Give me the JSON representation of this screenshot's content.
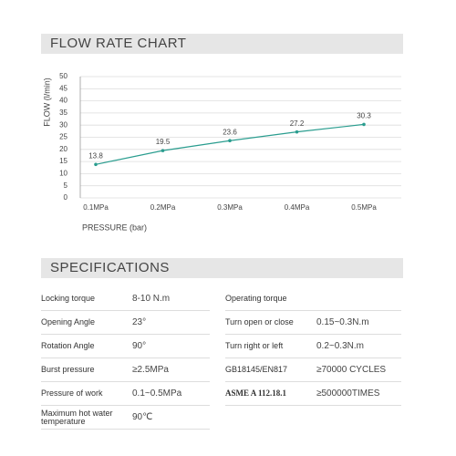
{
  "chart_data": {
    "type": "line",
    "title": "FLOW RATE CHART",
    "y_label": "FLOW (l/min)",
    "x_label": "PRESSURE (bar)",
    "categories": [
      "0.1MPa",
      "0.2MPa",
      "0.3MPa",
      "0.4MPa",
      "0.5MPa"
    ],
    "values": [
      13.8,
      19.5,
      23.6,
      27.2,
      30.3
    ],
    "color": "#2a9d8f",
    "ylim": [
      0,
      50
    ],
    "yticks": [
      0,
      5,
      10,
      15,
      20,
      25,
      30,
      35,
      40,
      45,
      50
    ],
    "grid": true
  },
  "specifications": {
    "title": "SPECIFICATIONS",
    "left": [
      {
        "label": "Locking torque",
        "value": "8-10 N.m"
      },
      {
        "label": "Opening Angle",
        "value": "23°"
      },
      {
        "label": "Rotation Angle",
        "value": "90°"
      },
      {
        "label": "Burst pressure",
        "value": "≥2.5MPa"
      },
      {
        "label": "Pressure of work",
        "value": "0.1~0.5MPa"
      },
      {
        "label": "Maximum hot water temperature",
        "value": "90℃"
      }
    ],
    "right": [
      {
        "label": "Operating torque"
      },
      {
        "label": "Turn open or close",
        "value": "0.15~0.3N.m"
      },
      {
        "label": "Turn right or left",
        "value": "0.2~0.3N.m"
      },
      {
        "label": "GB18145/EN817",
        "value": "≥70000 CYCLES"
      },
      {
        "label": "ASME A 112.18.1",
        "value": "≥500000TIMES"
      }
    ]
  }
}
